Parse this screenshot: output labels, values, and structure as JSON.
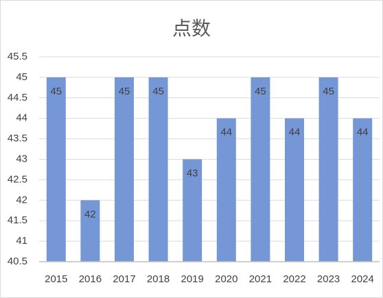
{
  "chart_data": {
    "type": "bar",
    "title": "点数",
    "categories": [
      "2015",
      "2016",
      "2017",
      "2018",
      "2019",
      "2020",
      "2021",
      "2022",
      "2023",
      "2024"
    ],
    "values": [
      45,
      42,
      45,
      45,
      43,
      44,
      45,
      44,
      45,
      44
    ],
    "color": "#7597d6",
    "ylim": [
      40.5,
      45.5
    ],
    "yticks": [
      40.5,
      41,
      41.5,
      42,
      42.5,
      43,
      43.5,
      44,
      44.5,
      45,
      45.5
    ],
    "grid": true
  }
}
